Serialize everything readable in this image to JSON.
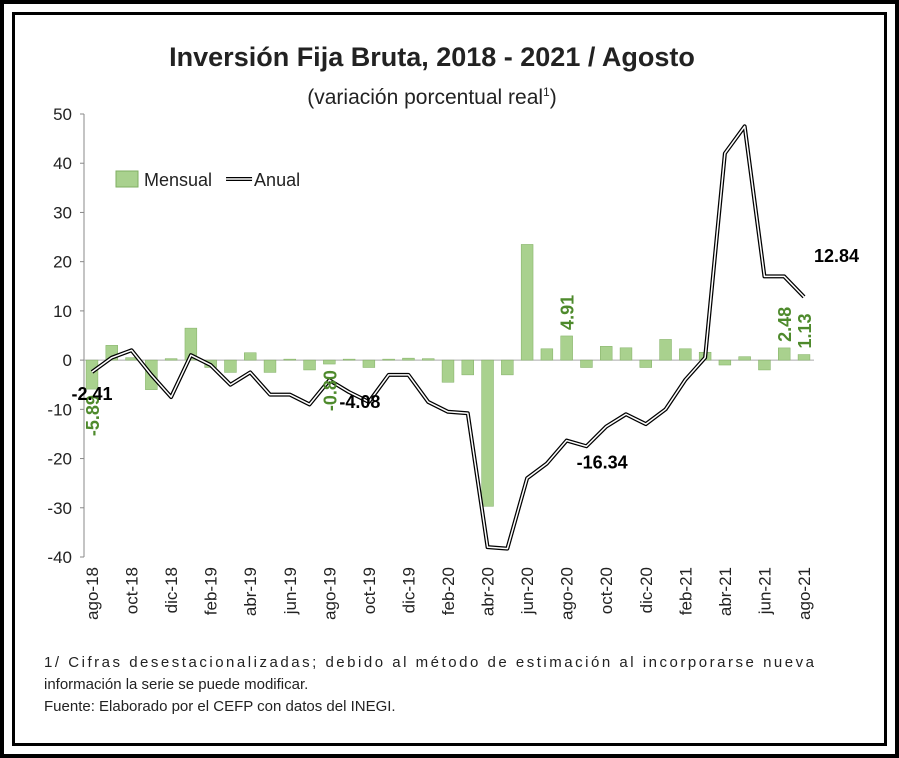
{
  "chart_data": {
    "type": "bar_line",
    "title": "Inversión Fija Bruta, 2018 - 2021 / Agosto",
    "subtitle": "(variación porcentual real",
    "subtitle_note": "1",
    "subtitle_end": ")",
    "categories": [
      "ago-18",
      null,
      "oct-18",
      null,
      "dic-18",
      null,
      "feb-19",
      null,
      "abr-19",
      null,
      "jun-19",
      null,
      "ago-19",
      null,
      "oct-19",
      null,
      "dic-19",
      null,
      "feb-20",
      null,
      "abr-20",
      null,
      "jun-20",
      null,
      "ago-20",
      null,
      "oct-20",
      null,
      "dic-20",
      null,
      "feb-21",
      null,
      "abr-21",
      null,
      "jun-21",
      null,
      "ago-21"
    ],
    "series": [
      {
        "name": "Mensual",
        "color": "#a9d18e",
        "kind": "bar",
        "values": [
          -5.89,
          3.0,
          0.5,
          -6.0,
          0.3,
          6.5,
          -1.5,
          -2.5,
          1.5,
          -2.5,
          0.2,
          -2.0,
          -0.8,
          0.2,
          -1.5,
          0.2,
          0.4,
          0.3,
          -4.5,
          -3.0,
          -29.7,
          -3.0,
          23.5,
          2.3,
          4.91,
          -1.5,
          2.8,
          2.5,
          -1.5,
          4.2,
          2.3,
          1.6,
          -1.0,
          0.7,
          -2.0,
          2.48,
          1.13
        ],
        "value_labels": [
          "-5.89",
          null,
          null,
          null,
          null,
          null,
          null,
          null,
          null,
          null,
          null,
          null,
          "-0.80",
          null,
          null,
          null,
          null,
          null,
          null,
          null,
          null,
          null,
          null,
          null,
          "4.91",
          null,
          null,
          null,
          null,
          null,
          null,
          null,
          null,
          null,
          null,
          "2.48",
          "1.13"
        ],
        "label_color": "#4e8a2c"
      },
      {
        "name": "Anual",
        "color": "#000000",
        "kind": "line",
        "values": [
          -2.41,
          0.5,
          2.0,
          -3.0,
          -7.5,
          1.0,
          -1.0,
          -5.0,
          -2.5,
          -7.0,
          -7.0,
          -9.0,
          -4.08,
          -6.5,
          -8.5,
          -3.0,
          -3.0,
          -8.5,
          -10.5,
          -10.8,
          -38.0,
          -38.3,
          -24.0,
          -21.0,
          -16.34,
          -17.5,
          -13.5,
          -11.0,
          -13.0,
          -10.0,
          -4.0,
          0.5,
          42.0,
          47.5,
          17.0,
          17.0,
          12.84
        ],
        "value_labels": [
          "-2.41",
          null,
          null,
          null,
          null,
          null,
          null,
          null,
          null,
          null,
          null,
          null,
          "-4.08",
          null,
          null,
          null,
          null,
          null,
          null,
          null,
          null,
          null,
          null,
          null,
          "-16.34",
          null,
          null,
          null,
          null,
          null,
          null,
          null,
          null,
          null,
          null,
          null,
          "12.84"
        ],
        "label_color": "#000000"
      }
    ],
    "ylim": [
      -40,
      50
    ],
    "yticks": [
      -40,
      -30,
      -20,
      -10,
      0,
      10,
      20,
      30,
      40,
      50
    ],
    "grid": false,
    "notes": [
      "1/ Cifras desestacionalizadas; debido al método de estimación al incorporarse nueva",
      "información la serie se puede modificar.",
      "Fuente: Elaborado por el CEFP con datos del INEGI."
    ]
  }
}
